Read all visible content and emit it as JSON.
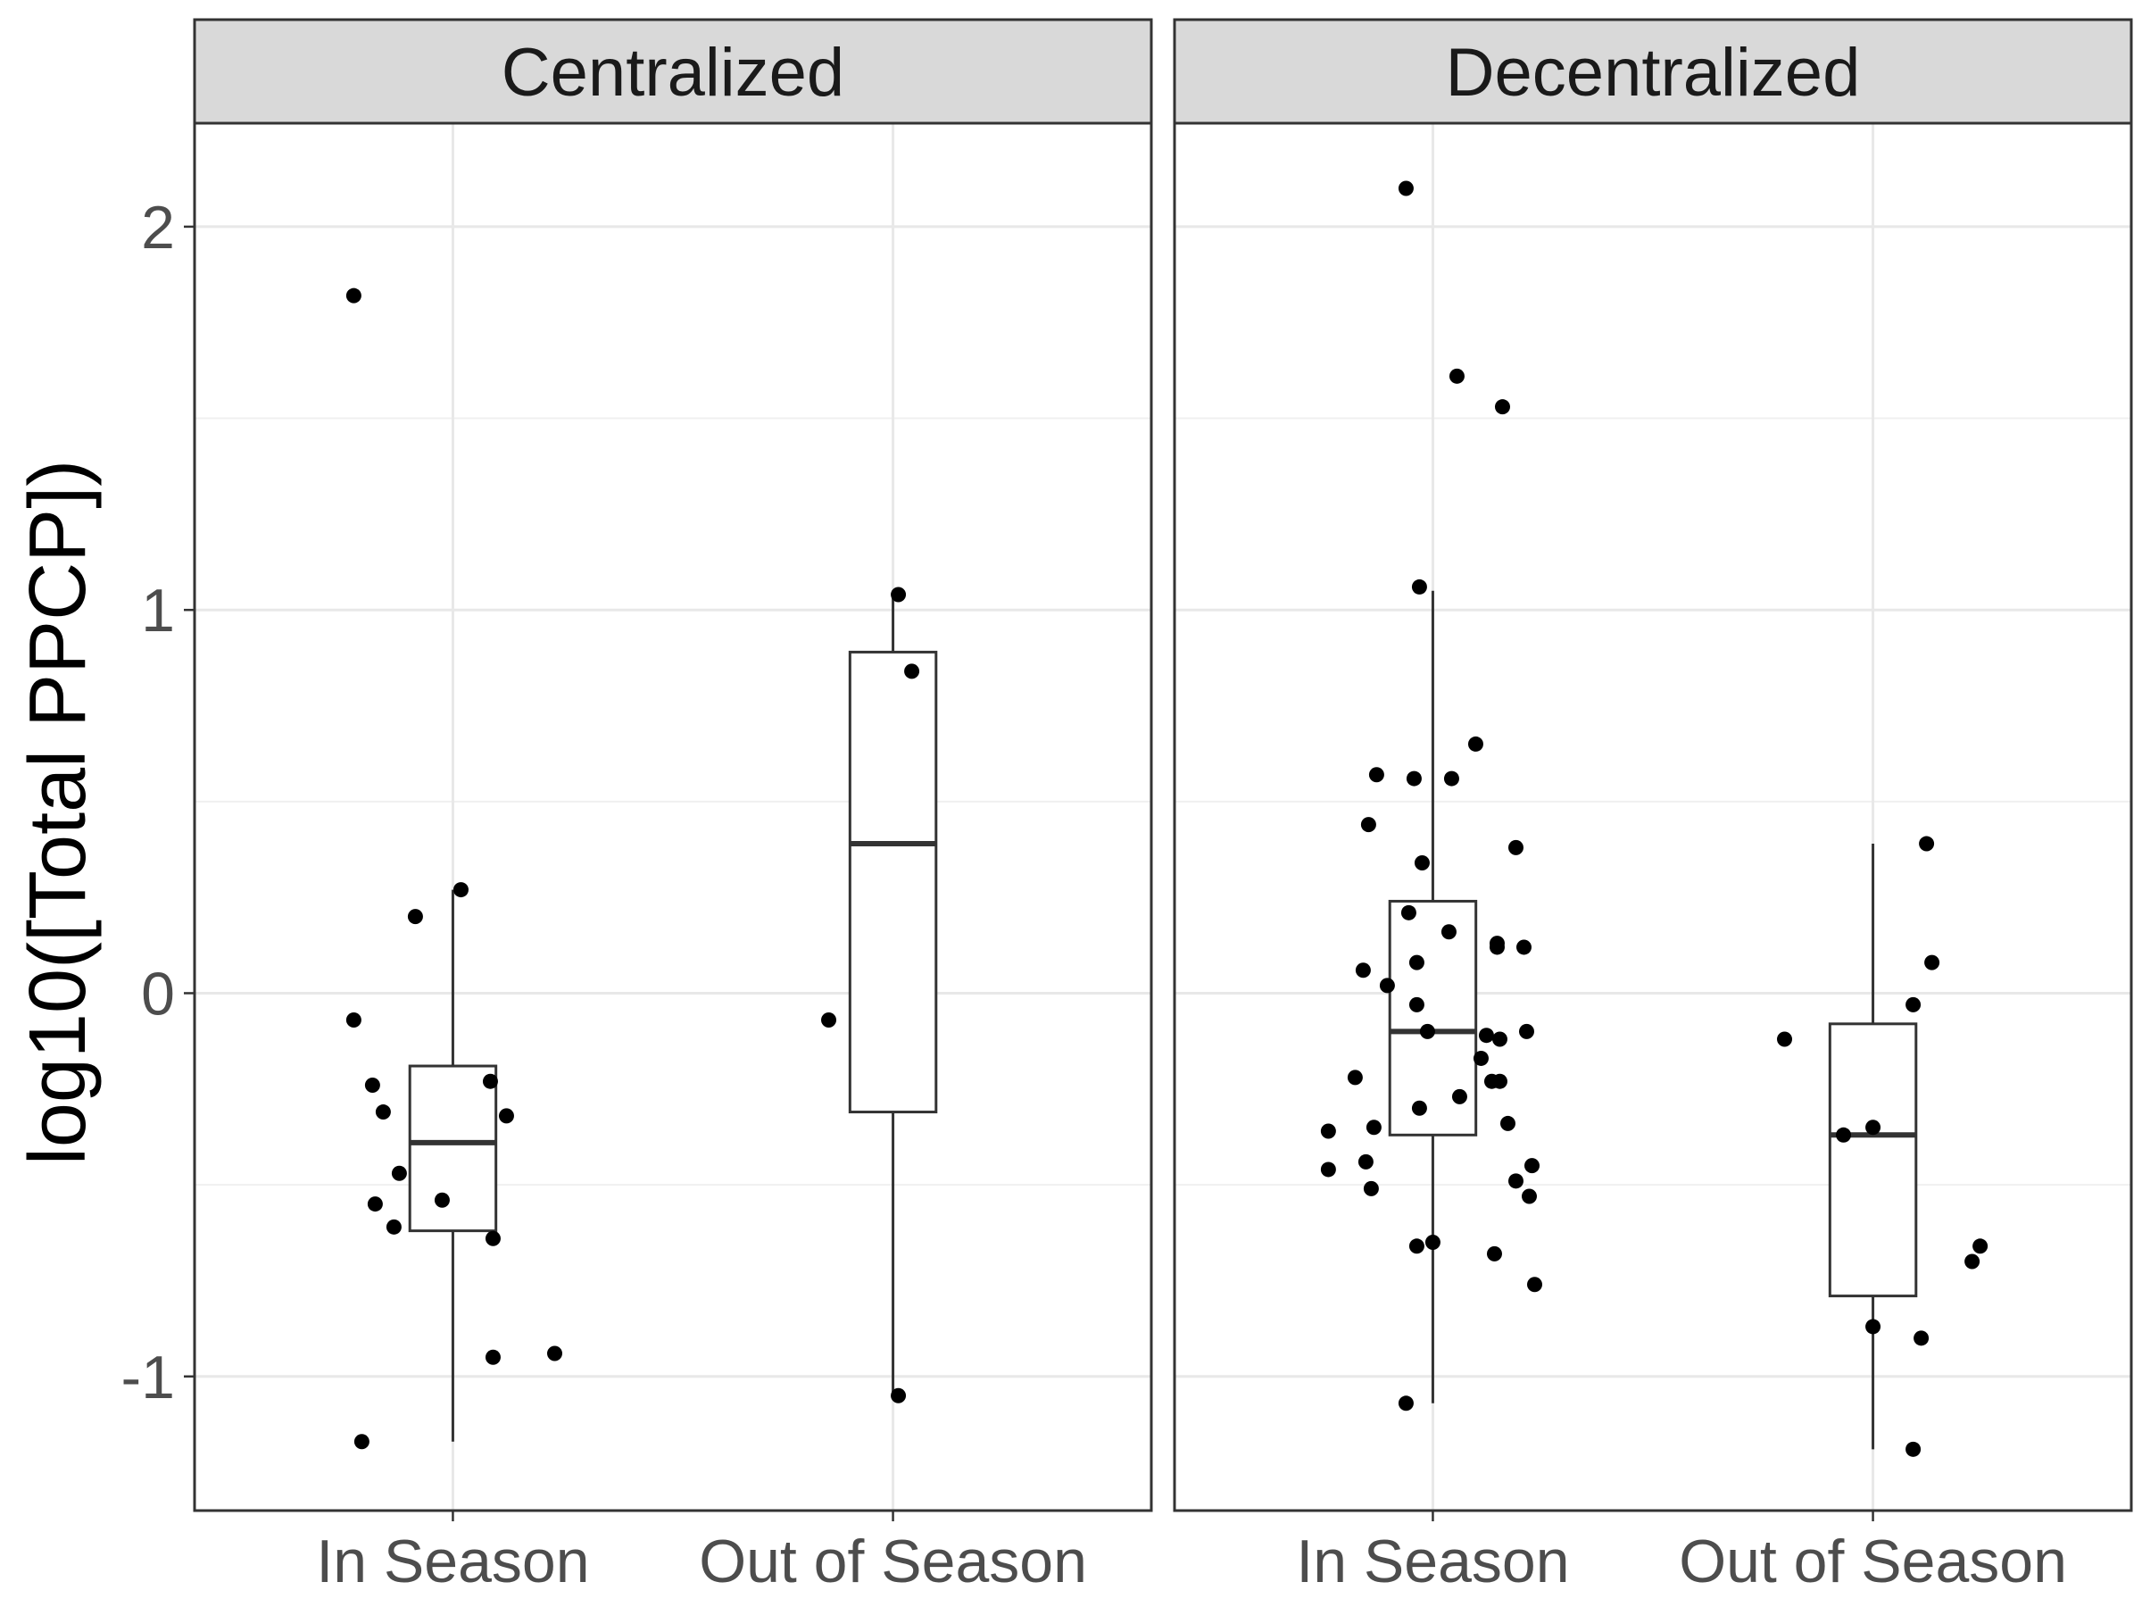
{
  "chart_data": {
    "type": "box",
    "ylabel": "log10([Total PPCP])",
    "xlabel": "",
    "categories": [
      "In Season",
      "Out of Season"
    ],
    "y_ticks": [
      {
        "value": -1,
        "label": "-1"
      },
      {
        "value": 0,
        "label": "0"
      },
      {
        "value": 1,
        "label": "1"
      },
      {
        "value": 2,
        "label": "2"
      }
    ],
    "ylim": [
      -1.35,
      2.27
    ],
    "grid": true,
    "facets": [
      {
        "label": "Centralized",
        "groups": [
          {
            "category": "In Season",
            "box": {
              "q1": -0.62,
              "median": -0.39,
              "q3": -0.19,
              "whisker_low": -1.17,
              "whisker_high": 0.27
            },
            "points": [
              {
                "x": -0.37,
                "y": 1.82
              },
              {
                "x": 0.03,
                "y": 0.27
              },
              {
                "x": -0.14,
                "y": 0.2
              },
              {
                "x": -0.37,
                "y": -0.07
              },
              {
                "x": -0.3,
                "y": -0.24
              },
              {
                "x": -0.26,
                "y": -0.31
              },
              {
                "x": 0.14,
                "y": -0.23
              },
              {
                "x": 0.2,
                "y": -0.32
              },
              {
                "x": -0.2,
                "y": -0.47
              },
              {
                "x": -0.29,
                "y": -0.55
              },
              {
                "x": -0.04,
                "y": -0.54
              },
              {
                "x": -0.22,
                "y": -0.61
              },
              {
                "x": 0.15,
                "y": -0.64
              },
              {
                "x": 0.15,
                "y": -0.95
              },
              {
                "x": 0.38,
                "y": -0.94
              },
              {
                "x": -0.34,
                "y": -1.17
              }
            ]
          },
          {
            "category": "Out of Season",
            "box": {
              "q1": -0.31,
              "median": 0.39,
              "q3": 0.89,
              "whisker_low": -1.05,
              "whisker_high": 1.04
            },
            "points": [
              {
                "x": 0.02,
                "y": 1.04
              },
              {
                "x": 0.07,
                "y": 0.84
              },
              {
                "x": -0.24,
                "y": -0.07
              },
              {
                "x": 0.02,
                "y": -1.05
              }
            ]
          }
        ]
      },
      {
        "label": "Decentralized",
        "groups": [
          {
            "category": "In Season",
            "box": {
              "q1": -0.37,
              "median": -0.1,
              "q3": 0.24,
              "whisker_low": -1.07,
              "whisker_high": 1.05
            },
            "points": [
              {
                "x": -0.1,
                "y": 2.1
              },
              {
                "x": 0.09,
                "y": 1.61
              },
              {
                "x": 0.26,
                "y": 1.53
              },
              {
                "x": -0.05,
                "y": 1.06
              },
              {
                "x": 0.16,
                "y": 0.65
              },
              {
                "x": -0.21,
                "y": 0.57
              },
              {
                "x": -0.07,
                "y": 0.56
              },
              {
                "x": 0.07,
                "y": 0.56
              },
              {
                "x": -0.24,
                "y": 0.44
              },
              {
                "x": 0.31,
                "y": 0.38
              },
              {
                "x": -0.04,
                "y": 0.34
              },
              {
                "x": -0.09,
                "y": 0.21
              },
              {
                "x": 0.06,
                "y": 0.16
              },
              {
                "x": 0.24,
                "y": 0.13
              },
              {
                "x": 0.24,
                "y": 0.12
              },
              {
                "x": 0.34,
                "y": 0.12
              },
              {
                "x": -0.06,
                "y": 0.08
              },
              {
                "x": -0.26,
                "y": 0.06
              },
              {
                "x": -0.17,
                "y": 0.02
              },
              {
                "x": -0.06,
                "y": -0.03
              },
              {
                "x": -0.02,
                "y": -0.1
              },
              {
                "x": 0.2,
                "y": -0.11
              },
              {
                "x": 0.25,
                "y": -0.12
              },
              {
                "x": 0.35,
                "y": -0.1
              },
              {
                "x": 0.18,
                "y": -0.17
              },
              {
                "x": 0.22,
                "y": -0.23
              },
              {
                "x": 0.25,
                "y": -0.23
              },
              {
                "x": -0.29,
                "y": -0.22
              },
              {
                "x": 0.1,
                "y": -0.27
              },
              {
                "x": -0.05,
                "y": -0.3
              },
              {
                "x": 0.28,
                "y": -0.34
              },
              {
                "x": -0.39,
                "y": -0.36
              },
              {
                "x": -0.22,
                "y": -0.35
              },
              {
                "x": -0.25,
                "y": -0.44
              },
              {
                "x": -0.39,
                "y": -0.46
              },
              {
                "x": 0.37,
                "y": -0.45
              },
              {
                "x": 0.31,
                "y": -0.49
              },
              {
                "x": -0.23,
                "y": -0.51
              },
              {
                "x": 0.36,
                "y": -0.53
              },
              {
                "x": -0.06,
                "y": -0.66
              },
              {
                "x": 0.0,
                "y": -0.65
              },
              {
                "x": 0.23,
                "y": -0.68
              },
              {
                "x": 0.38,
                "y": -0.76
              },
              {
                "x": -0.1,
                "y": -1.07
              }
            ]
          },
          {
            "category": "Out of Season",
            "box": {
              "q1": -0.79,
              "median": -0.37,
              "q3": -0.08,
              "whisker_low": -1.19,
              "whisker_high": 0.39
            },
            "points": [
              {
                "x": 0.2,
                "y": 0.39
              },
              {
                "x": 0.22,
                "y": 0.08
              },
              {
                "x": 0.15,
                "y": -0.03
              },
              {
                "x": -0.33,
                "y": -0.12
              },
              {
                "x": -0.11,
                "y": -0.37
              },
              {
                "x": 0.0,
                "y": -0.35
              },
              {
                "x": 0.0,
                "y": -0.87
              },
              {
                "x": 0.18,
                "y": -0.9
              },
              {
                "x": 0.37,
                "y": -0.7
              },
              {
                "x": 0.4,
                "y": -0.66
              },
              {
                "x": 0.15,
                "y": -1.19
              }
            ]
          }
        ]
      }
    ]
  }
}
